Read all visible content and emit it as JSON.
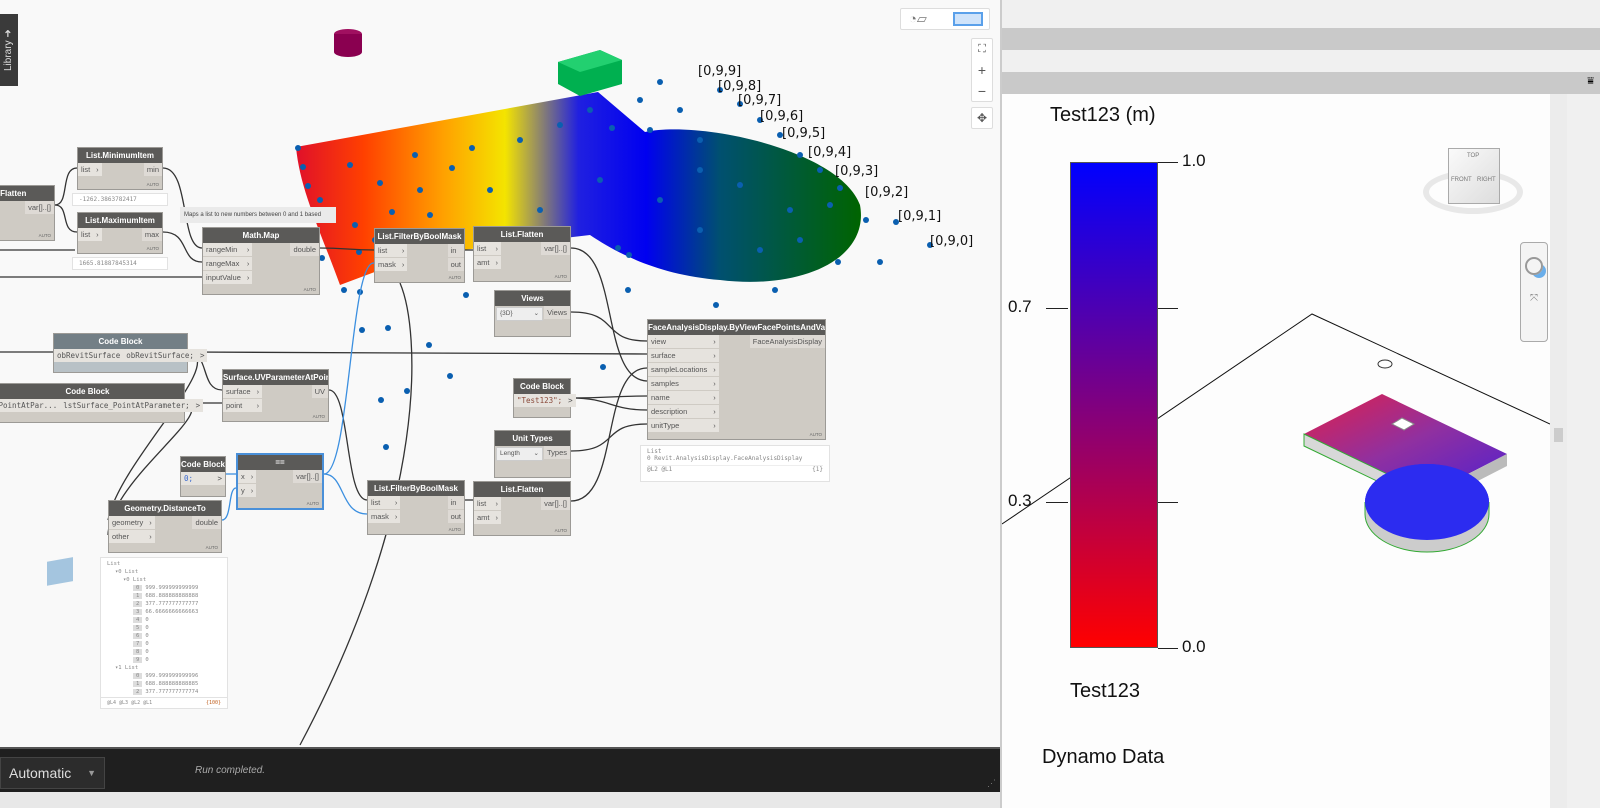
{
  "library_tab": "Library ➜",
  "toolbar": {
    "geometry_view_icon": "geometry-view-icon",
    "graph_view_icon": "graph-view-icon",
    "zoom_fit": "⛶",
    "zoom_in": "+",
    "zoom_out": "−",
    "pan": "✥"
  },
  "tooltip": "Maps a list to new numbers between 0 and 1 based",
  "nodes": {
    "flatten0": {
      "title": "List.Flatten",
      "inputs": [
        "",
        ""
      ],
      "outputs": [
        "var[]..[]"
      ]
    },
    "minItem": {
      "title": "List.MinimumItem",
      "inputs": [
        "list"
      ],
      "outputs": [
        "min"
      ],
      "preview": "-1262.3863782417"
    },
    "maxItem": {
      "title": "List.MaximumItem",
      "inputs": [
        "list"
      ],
      "outputs": [
        "max"
      ],
      "preview": "1665.81887845314"
    },
    "mathMap": {
      "title": "Math.Map",
      "inputs": [
        "rangeMin",
        "rangeMax",
        "inputValue"
      ],
      "outputs": [
        "double"
      ]
    },
    "filter1": {
      "title": "List.FilterByBoolMask",
      "inputs": [
        "list",
        "mask"
      ],
      "outputs": [
        "in",
        "out"
      ]
    },
    "flatten1": {
      "title": "List.Flatten",
      "inputs": [
        "list",
        "amt"
      ],
      "outputs": [
        "var[]..[]"
      ]
    },
    "views": {
      "title": "Views",
      "dropdown": "{3D}",
      "outputs": [
        "Views"
      ]
    },
    "fad": {
      "title": "FaceAnalysisDisplay.ByViewFacePointsAndValues",
      "inputs": [
        "view",
        "surface",
        "sampleLocations",
        "samples",
        "name",
        "description",
        "unitType"
      ],
      "outputs": [
        "FaceAnalysisDisplay"
      ],
      "preview": [
        "List",
        "0",
        "Revit.AnalysisDisplay.FaceAnalysisDisplay",
        "@L2 @L1",
        "{1}"
      ]
    },
    "cbSurface": {
      "title": "Code Block",
      "input": "obRevitSurface",
      "code": "obRevitSurface;"
    },
    "cbPoint": {
      "title": "Code Block",
      "input": "_PointAtPar...",
      "code": "lstSurface_PointAtParameter;"
    },
    "uvParam": {
      "title": "Surface.UVParameterAtPoint",
      "inputs": [
        "surface",
        "point"
      ],
      "outputs": [
        "UV"
      ]
    },
    "cbName": {
      "title": "Code Block",
      "code": "\"Test123\";"
    },
    "unitTypes": {
      "title": "Unit Types",
      "dropdown": "Length",
      "outputs": [
        "Types"
      ]
    },
    "cbZero": {
      "title": "Code Block",
      "code": "0;"
    },
    "equals": {
      "title": "==",
      "inputs": [
        "x",
        "y"
      ],
      "outputs": [
        "var[]..[]"
      ]
    },
    "distTo": {
      "title": "Geometry.DistanceTo",
      "inputs": [
        "geometry",
        "other"
      ],
      "outputs": [
        "double"
      ]
    },
    "filter2": {
      "title": "List.FilterByBoolMask",
      "inputs": [
        "list",
        "mask"
      ],
      "outputs": [
        "in",
        "out"
      ]
    },
    "flatten2": {
      "title": "List.Flatten",
      "inputs": [
        "list",
        "amt"
      ],
      "outputs": [
        "var[]..[]"
      ]
    }
  },
  "auto_label": "AUTO",
  "distance_preview": {
    "root": "List",
    "groups": [
      {
        "label": "0 List",
        "sub": "0 List",
        "items": [
          [
            "0",
            "999.999999999999"
          ],
          [
            "1",
            "688.888888888888"
          ],
          [
            "2",
            "377.777777777777"
          ],
          [
            "3",
            "66.6666666666663"
          ],
          [
            "4",
            "0"
          ],
          [
            "5",
            "0"
          ],
          [
            "6",
            "0"
          ],
          [
            "7",
            "0"
          ],
          [
            "8",
            "0"
          ],
          [
            "9",
            "0"
          ]
        ]
      },
      {
        "label": "1 List",
        "items": [
          [
            "0",
            "999.999999999996"
          ],
          [
            "1",
            "688.888888888885"
          ],
          [
            "2",
            "377.777777777774"
          ]
        ]
      }
    ],
    "footer": "@L4 @L3 @L2 @L1",
    "count": "{100}"
  },
  "point_labels": [
    "[0,9,9]",
    "[0,9,8]",
    "[0,9,7]",
    "[0,9,6]",
    "[0,9,5]",
    "[0,9,4]",
    "[0,9,3]",
    "[0,9,2]",
    "[0,9,1]",
    "[0,9,0]"
  ],
  "bottom": {
    "run_mode": "Automatic",
    "status": "Run completed."
  },
  "legend": {
    "title": "Test123 (m)",
    "ticks": [
      "1.0",
      "0.7",
      "0.3",
      "0.0"
    ],
    "tick_values": [
      1.0,
      0.7,
      0.3,
      0.0
    ],
    "name": "Test123",
    "footer": "Dynamo Data",
    "colors": {
      "max": "#0000ff",
      "min": "#ff0000"
    }
  },
  "viewcube": {
    "top": "TOP",
    "front": "FRONT",
    "right": "RIGHT"
  }
}
